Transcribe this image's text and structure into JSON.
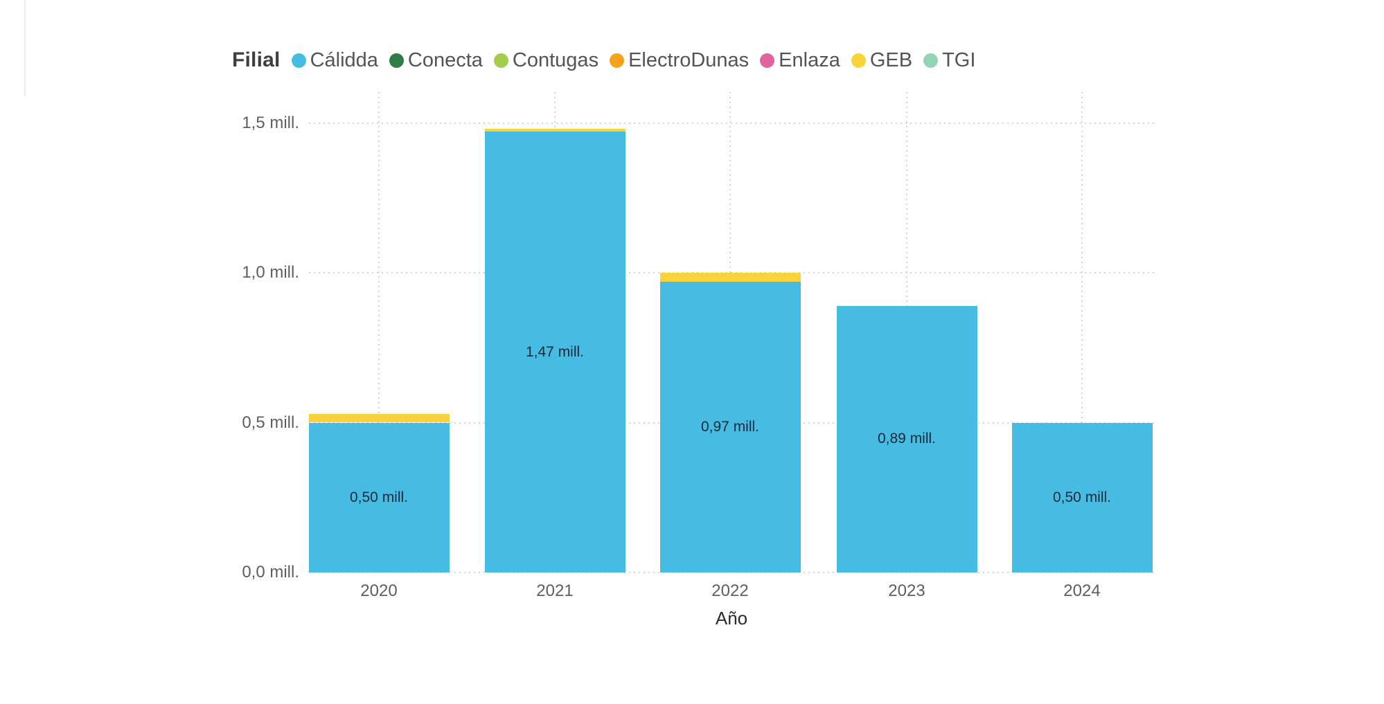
{
  "legend": {
    "title": "Filial",
    "items": [
      {
        "label": "Cálidda",
        "color": "#47bce2"
      },
      {
        "label": "Conecta",
        "color": "#2e7d46"
      },
      {
        "label": "Contugas",
        "color": "#a2ce4e"
      },
      {
        "label": "ElectroDunas",
        "color": "#f7a21b"
      },
      {
        "label": "Enlaza",
        "color": "#e2639f"
      },
      {
        "label": "GEB",
        "color": "#f8d33c"
      },
      {
        "label": "TGI",
        "color": "#92d5b4"
      }
    ]
  },
  "chart_data": {
    "type": "bar",
    "stacked": true,
    "title": "",
    "xlabel": "Año",
    "ylabel": "",
    "categories": [
      "2020",
      "2021",
      "2022",
      "2023",
      "2024"
    ],
    "series": [
      {
        "name": "Cálidda",
        "color": "#47bce2",
        "values": [
          0.5,
          1.47,
          0.97,
          0.89,
          0.5
        ],
        "labels": [
          "0,50 mill.",
          "1,47 mill.",
          "0,97 mill.",
          "0,89 mill.",
          "0,50 mill."
        ]
      },
      {
        "name": "GEB",
        "color": "#f8d33c",
        "values": [
          0.03,
          0.01,
          0.03,
          0,
          0
        ],
        "labels": [
          "",
          "",
          "",
          "",
          ""
        ]
      }
    ],
    "ylim": [
      0,
      1.6
    ],
    "yticks": [
      {
        "value": 0.0,
        "label": "0,0 mill."
      },
      {
        "value": 0.5,
        "label": "0,5 mill."
      },
      {
        "value": 1.0,
        "label": "1,0 mill."
      },
      {
        "value": 1.5,
        "label": "1,5 mill."
      }
    ],
    "grid": "dotted",
    "legend_position": "top"
  }
}
